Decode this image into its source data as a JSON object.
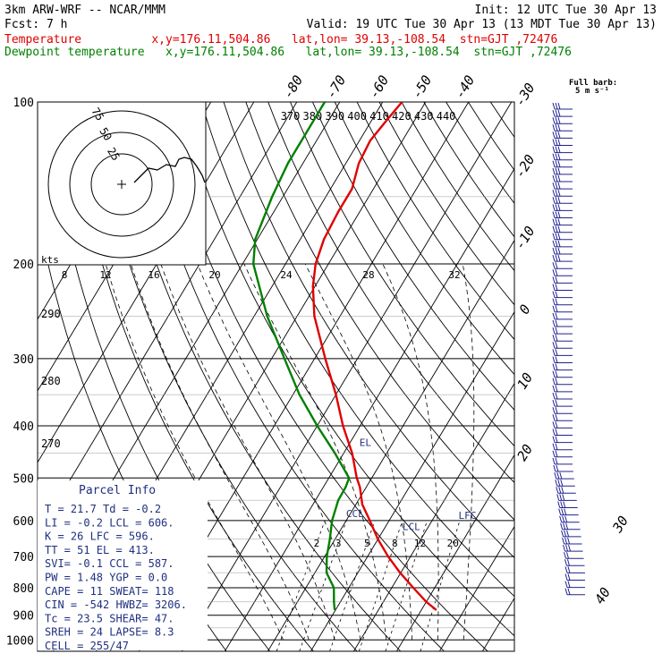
{
  "header": {
    "model": "3km ARW-WRF -- NCAR/MMM",
    "init": "Init: 12 UTC Tue 30 Apr 13",
    "fcst": "Fcst:     7 h",
    "valid": "Valid: 19 UTC Tue 30 Apr 13 (13 MDT Tue 30 Apr 13)",
    "temp_legend": "Temperature          x,y=176.11,504.86   lat,lon= 39.13,-108.54  stn=GJT ,72476",
    "dew_legend": "Dewpoint temperature   x,y=176.11,504.86   lat,lon= 39.13,-108.54  stn=GJT ,72476"
  },
  "colors": {
    "temperature": "#e00000",
    "dewpoint": "#008000",
    "parcel_text": "#203080",
    "barbs": "#202090",
    "grid": "#000000"
  },
  "chart_data": {
    "type": "skew-t",
    "pressure_ticks": [
      100,
      200,
      300,
      400,
      500,
      600,
      700,
      800,
      900,
      1000
    ],
    "temp_isotherm_labels": [
      -80,
      -70,
      -60,
      -50,
      -40,
      -30,
      -20,
      -10,
      0,
      10,
      20,
      30,
      40
    ],
    "theta_labels": [
      370,
      380,
      390,
      400,
      410,
      420,
      430,
      440
    ],
    "theta_side_labels": [
      290,
      280,
      270
    ],
    "mixing_ratio_labels": [
      "2",
      "3",
      "5",
      "8",
      "12",
      "20"
    ],
    "temperature": [
      {
        "p": 880,
        "t": 23.5
      },
      {
        "p": 850,
        "t": 20
      },
      {
        "p": 800,
        "t": 15
      },
      {
        "p": 750,
        "t": 9.8
      },
      {
        "p": 700,
        "t": 4.8
      },
      {
        "p": 650,
        "t": 0
      },
      {
        "p": 600,
        "t": -4.5
      },
      {
        "p": 560,
        "t": -8.5
      },
      {
        "p": 520,
        "t": -11.5
      },
      {
        "p": 500,
        "t": -13.5
      },
      {
        "p": 450,
        "t": -18
      },
      {
        "p": 400,
        "t": -24
      },
      {
        "p": 350,
        "t": -30
      },
      {
        "p": 300,
        "t": -37.5
      },
      {
        "p": 250,
        "t": -46
      },
      {
        "p": 220,
        "t": -50.5
      },
      {
        "p": 200,
        "t": -53
      },
      {
        "p": 180,
        "t": -54.5
      },
      {
        "p": 160,
        "t": -55
      },
      {
        "p": 145,
        "t": -55
      },
      {
        "p": 130,
        "t": -57
      },
      {
        "p": 118,
        "t": -57.5
      },
      {
        "p": 108,
        "t": -56.5
      },
      {
        "p": 100,
        "t": -55.5
      }
    ],
    "dewpoint": [
      {
        "p": 880,
        "t": -0.2
      },
      {
        "p": 850,
        "t": -1.5
      },
      {
        "p": 800,
        "t": -3.5
      },
      {
        "p": 750,
        "t": -7.3
      },
      {
        "p": 700,
        "t": -9.5
      },
      {
        "p": 650,
        "t": -11.2
      },
      {
        "p": 600,
        "t": -13.3
      },
      {
        "p": 550,
        "t": -14.7
      },
      {
        "p": 520,
        "t": -14.8
      },
      {
        "p": 500,
        "t": -15.3
      },
      {
        "p": 450,
        "t": -22
      },
      {
        "p": 400,
        "t": -30
      },
      {
        "p": 350,
        "t": -38.5
      },
      {
        "p": 300,
        "t": -47
      },
      {
        "p": 250,
        "t": -57
      },
      {
        "p": 220,
        "t": -63
      },
      {
        "p": 200,
        "t": -67.5
      },
      {
        "p": 180,
        "t": -70.5
      },
      {
        "p": 150,
        "t": -72.5
      },
      {
        "p": 130,
        "t": -73.5
      },
      {
        "p": 115,
        "t": -73.5
      },
      {
        "p": 100,
        "t": -73.5
      }
    ],
    "level_markers": [
      {
        "label": "CCL",
        "p": 587
      },
      {
        "label": "LCL",
        "p": 606
      },
      {
        "label": "LFC",
        "p": 596
      },
      {
        "label": "EL",
        "p": 413
      }
    ],
    "parcel_info": {
      "title": "Parcel Info",
      "rows": [
        "T  =   21.7  Td =   -0.2",
        "LI =   -0.2  LCL =  606.",
        "K  =     26  LFC =  596.",
        "TT =     51  EL  =  413.",
        "SVI=   -0.1  CCL =  587.",
        "PW =   1.48  YGP =   0.0",
        "CAPE =   11  SWEAT=  118",
        "CIN =  -542  HWBZ= 3206.",
        "Tc =   23.5  SHEAR=  47.",
        "SREH =   24  LAPSE=  8.3",
        "CELL = 255/47"
      ]
    },
    "hodograph": {
      "units": "kts",
      "ring_labels": [
        "25",
        "50",
        "75"
      ],
      "speed_scale_labels": [
        "8",
        "12",
        "16",
        "20",
        "24",
        "28",
        "32"
      ]
    },
    "wind_barbs_note": {
      "line1": "Full barb:",
      "line2": "5 m s⁻¹"
    }
  }
}
